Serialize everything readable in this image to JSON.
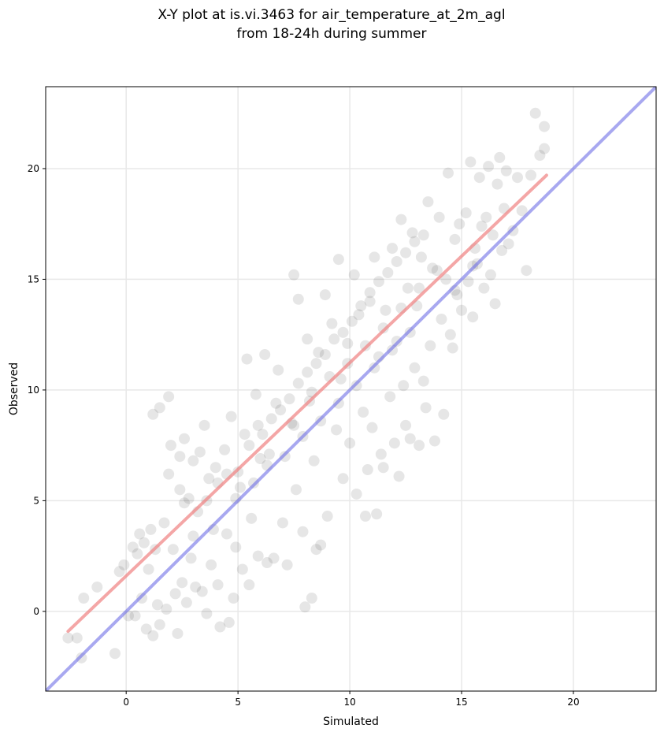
{
  "chart_data": {
    "type": "scatter",
    "title_lines": [
      "X-Y plot at is.vi.3463 for air_temperature_at_2m_agl",
      "from 18-24h during summer"
    ],
    "xlabel": "Simulated",
    "ylabel": "Observed",
    "xlim": [
      -3.6,
      23.7
    ],
    "ylim": [
      -3.6,
      23.7
    ],
    "xticks": [
      0,
      5,
      10,
      15,
      20
    ],
    "yticks": [
      0,
      5,
      10,
      15,
      20
    ],
    "xtick_labels": [
      "0",
      "5",
      "10",
      "15",
      "20"
    ],
    "ytick_labels": [
      "0",
      "5",
      "10",
      "15",
      "20"
    ],
    "grid": true,
    "point_color": "#333333",
    "identity_line": {
      "x": [
        -3.6,
        23.7
      ],
      "y": [
        -3.6,
        23.7
      ],
      "color": "#6e6ee6"
    },
    "fit_line": {
      "x": [
        -2.6,
        18.8
      ],
      "y": [
        -0.9,
        19.7
      ],
      "color": "#f08080"
    },
    "points": [
      [
        -2.6,
        -1.2
      ],
      [
        -2.2,
        -1.2
      ],
      [
        -2.0,
        -2.1
      ],
      [
        -1.9,
        0.6
      ],
      [
        -1.3,
        1.1
      ],
      [
        -0.5,
        -1.9
      ],
      [
        -0.3,
        1.8
      ],
      [
        -0.1,
        2.1
      ],
      [
        0.1,
        -0.2
      ],
      [
        0.3,
        2.9
      ],
      [
        0.4,
        -0.2
      ],
      [
        0.5,
        2.6
      ],
      [
        0.6,
        3.5
      ],
      [
        0.7,
        0.6
      ],
      [
        0.8,
        3.1
      ],
      [
        0.9,
        -0.8
      ],
      [
        1.0,
        1.9
      ],
      [
        1.1,
        3.7
      ],
      [
        1.2,
        -1.1
      ],
      [
        1.2,
        8.9
      ],
      [
        1.3,
        2.8
      ],
      [
        1.4,
        0.3
      ],
      [
        1.5,
        9.2
      ],
      [
        1.5,
        -0.6
      ],
      [
        1.7,
        4.0
      ],
      [
        1.8,
        0.1
      ],
      [
        1.9,
        9.7
      ],
      [
        1.9,
        6.2
      ],
      [
        2.0,
        7.5
      ],
      [
        2.1,
        2.8
      ],
      [
        2.2,
        0.8
      ],
      [
        2.3,
        -1.0
      ],
      [
        2.4,
        7.0
      ],
      [
        2.4,
        5.5
      ],
      [
        2.5,
        1.3
      ],
      [
        2.6,
        7.8
      ],
      [
        2.7,
        0.4
      ],
      [
        2.8,
        5.1
      ],
      [
        2.9,
        2.4
      ],
      [
        3.0,
        6.8
      ],
      [
        3.1,
        1.1
      ],
      [
        3.2,
        4.5
      ],
      [
        3.3,
        7.2
      ],
      [
        3.4,
        0.9
      ],
      [
        3.5,
        8.4
      ],
      [
        3.6,
        -0.1
      ],
      [
        3.7,
        6.0
      ],
      [
        3.8,
        2.1
      ],
      [
        3.9,
        3.7
      ],
      [
        4.0,
        6.5
      ],
      [
        4.1,
        1.2
      ],
      [
        4.2,
        -0.7
      ],
      [
        4.4,
        7.3
      ],
      [
        4.5,
        3.5
      ],
      [
        4.6,
        -0.5
      ],
      [
        4.7,
        8.8
      ],
      [
        4.8,
        0.6
      ],
      [
        4.9,
        2.9
      ],
      [
        5.0,
        6.3
      ],
      [
        5.2,
        1.9
      ],
      [
        5.3,
        8.0
      ],
      [
        5.4,
        11.4
      ],
      [
        5.5,
        1.2
      ],
      [
        5.6,
        4.2
      ],
      [
        5.8,
        9.8
      ],
      [
        5.9,
        2.5
      ],
      [
        6.0,
        6.9
      ],
      [
        6.2,
        11.6
      ],
      [
        6.3,
        2.2
      ],
      [
        6.4,
        7.1
      ],
      [
        6.6,
        2.4
      ],
      [
        6.8,
        10.9
      ],
      [
        7.0,
        4.0
      ],
      [
        7.2,
        2.1
      ],
      [
        7.4,
        8.5
      ],
      [
        7.5,
        15.2
      ],
      [
        7.6,
        5.5
      ],
      [
        7.7,
        14.1
      ],
      [
        7.9,
        3.6
      ],
      [
        8.0,
        0.2
      ],
      [
        8.1,
        12.3
      ],
      [
        8.2,
        9.5
      ],
      [
        8.3,
        0.6
      ],
      [
        8.4,
        6.8
      ],
      [
        8.5,
        2.8
      ],
      [
        8.6,
        11.7
      ],
      [
        8.7,
        3.0
      ],
      [
        8.9,
        14.3
      ],
      [
        9.0,
        4.3
      ],
      [
        9.2,
        13.0
      ],
      [
        9.4,
        8.2
      ],
      [
        9.5,
        15.9
      ],
      [
        9.6,
        10.5
      ],
      [
        9.7,
        6.0
      ],
      [
        9.9,
        12.1
      ],
      [
        10.0,
        7.6
      ],
      [
        10.2,
        15.2
      ],
      [
        10.3,
        5.3
      ],
      [
        10.4,
        13.4
      ],
      [
        10.6,
        9.0
      ],
      [
        10.7,
        4.3
      ],
      [
        10.8,
        6.4
      ],
      [
        10.9,
        14.0
      ],
      [
        11.0,
        8.3
      ],
      [
        11.1,
        16.0
      ],
      [
        11.2,
        4.4
      ],
      [
        11.3,
        11.5
      ],
      [
        11.4,
        7.1
      ],
      [
        11.5,
        6.5
      ],
      [
        11.6,
        13.6
      ],
      [
        11.8,
        9.7
      ],
      [
        11.9,
        16.4
      ],
      [
        12.0,
        7.6
      ],
      [
        12.1,
        12.2
      ],
      [
        12.2,
        6.1
      ],
      [
        12.3,
        17.7
      ],
      [
        12.4,
        10.2
      ],
      [
        12.5,
        8.4
      ],
      [
        12.6,
        14.6
      ],
      [
        12.7,
        7.8
      ],
      [
        12.8,
        17.1
      ],
      [
        12.9,
        11.0
      ],
      [
        13.0,
        13.8
      ],
      [
        13.1,
        7.5
      ],
      [
        13.2,
        16.0
      ],
      [
        13.3,
        10.4
      ],
      [
        13.4,
        9.2
      ],
      [
        13.5,
        18.5
      ],
      [
        13.6,
        12.0
      ],
      [
        13.7,
        15.5
      ],
      [
        13.8,
        7.7
      ],
      [
        14.0,
        17.8
      ],
      [
        14.1,
        13.2
      ],
      [
        14.2,
        8.9
      ],
      [
        14.3,
        15.0
      ],
      [
        14.4,
        19.8
      ],
      [
        14.5,
        12.5
      ],
      [
        14.6,
        11.9
      ],
      [
        14.7,
        16.8
      ],
      [
        14.8,
        14.3
      ],
      [
        14.9,
        17.5
      ],
      [
        15.0,
        13.6
      ],
      [
        15.2,
        18.0
      ],
      [
        15.3,
        14.9
      ],
      [
        15.4,
        20.3
      ],
      [
        15.5,
        13.3
      ],
      [
        15.6,
        16.4
      ],
      [
        15.7,
        15.7
      ],
      [
        15.8,
        19.6
      ],
      [
        15.9,
        17.4
      ],
      [
        16.0,
        14.6
      ],
      [
        16.1,
        17.8
      ],
      [
        16.2,
        20.1
      ],
      [
        16.3,
        15.2
      ],
      [
        16.4,
        17.0
      ],
      [
        16.5,
        13.9
      ],
      [
        16.6,
        19.3
      ],
      [
        16.7,
        20.5
      ],
      [
        16.8,
        16.3
      ],
      [
        16.9,
        18.2
      ],
      [
        17.0,
        19.9
      ],
      [
        17.1,
        16.6
      ],
      [
        17.3,
        17.2
      ],
      [
        17.5,
        19.6
      ],
      [
        17.7,
        18.1
      ],
      [
        17.9,
        15.4
      ],
      [
        18.1,
        19.7
      ],
      [
        18.3,
        22.5
      ],
      [
        18.5,
        20.6
      ],
      [
        18.7,
        21.9
      ],
      [
        18.7,
        20.9
      ],
      [
        2.6,
        4.9
      ],
      [
        3.0,
        3.4
      ],
      [
        3.6,
        5.0
      ],
      [
        4.1,
        5.8
      ],
      [
        4.5,
        6.2
      ],
      [
        5.1,
        5.6
      ],
      [
        5.5,
        7.5
      ],
      [
        6.1,
        8.0
      ],
      [
        6.5,
        8.7
      ],
      [
        6.9,
        9.1
      ],
      [
        7.3,
        9.6
      ],
      [
        7.7,
        10.3
      ],
      [
        8.1,
        10.8
      ],
      [
        8.5,
        11.2
      ],
      [
        8.9,
        11.6
      ],
      [
        9.3,
        12.3
      ],
      [
        9.7,
        12.6
      ],
      [
        10.1,
        13.1
      ],
      [
        10.5,
        13.8
      ],
      [
        10.9,
        14.4
      ],
      [
        11.3,
        14.9
      ],
      [
        11.7,
        15.3
      ],
      [
        12.1,
        15.8
      ],
      [
        12.5,
        16.2
      ],
      [
        12.9,
        16.7
      ],
      [
        13.3,
        17.0
      ],
      [
        5.9,
        8.4
      ],
      [
        6.7,
        9.4
      ],
      [
        7.5,
        8.4
      ],
      [
        8.3,
        9.9
      ],
      [
        9.1,
        10.6
      ],
      [
        9.9,
        11.2
      ],
      [
        10.7,
        12.0
      ],
      [
        11.5,
        12.8
      ],
      [
        12.3,
        13.7
      ],
      [
        13.1,
        14.6
      ],
      [
        13.9,
        15.4
      ],
      [
        7.1,
        7.0
      ],
      [
        7.9,
        7.9
      ],
      [
        8.7,
        8.6
      ],
      [
        9.5,
        9.4
      ],
      [
        10.3,
        10.2
      ],
      [
        11.1,
        11.0
      ],
      [
        11.9,
        11.8
      ],
      [
        12.7,
        12.6
      ],
      [
        4.9,
        5.1
      ],
      [
        5.7,
        5.8
      ],
      [
        6.3,
        6.6
      ],
      [
        14.7,
        14.5
      ],
      [
        15.5,
        15.6
      ]
    ]
  }
}
